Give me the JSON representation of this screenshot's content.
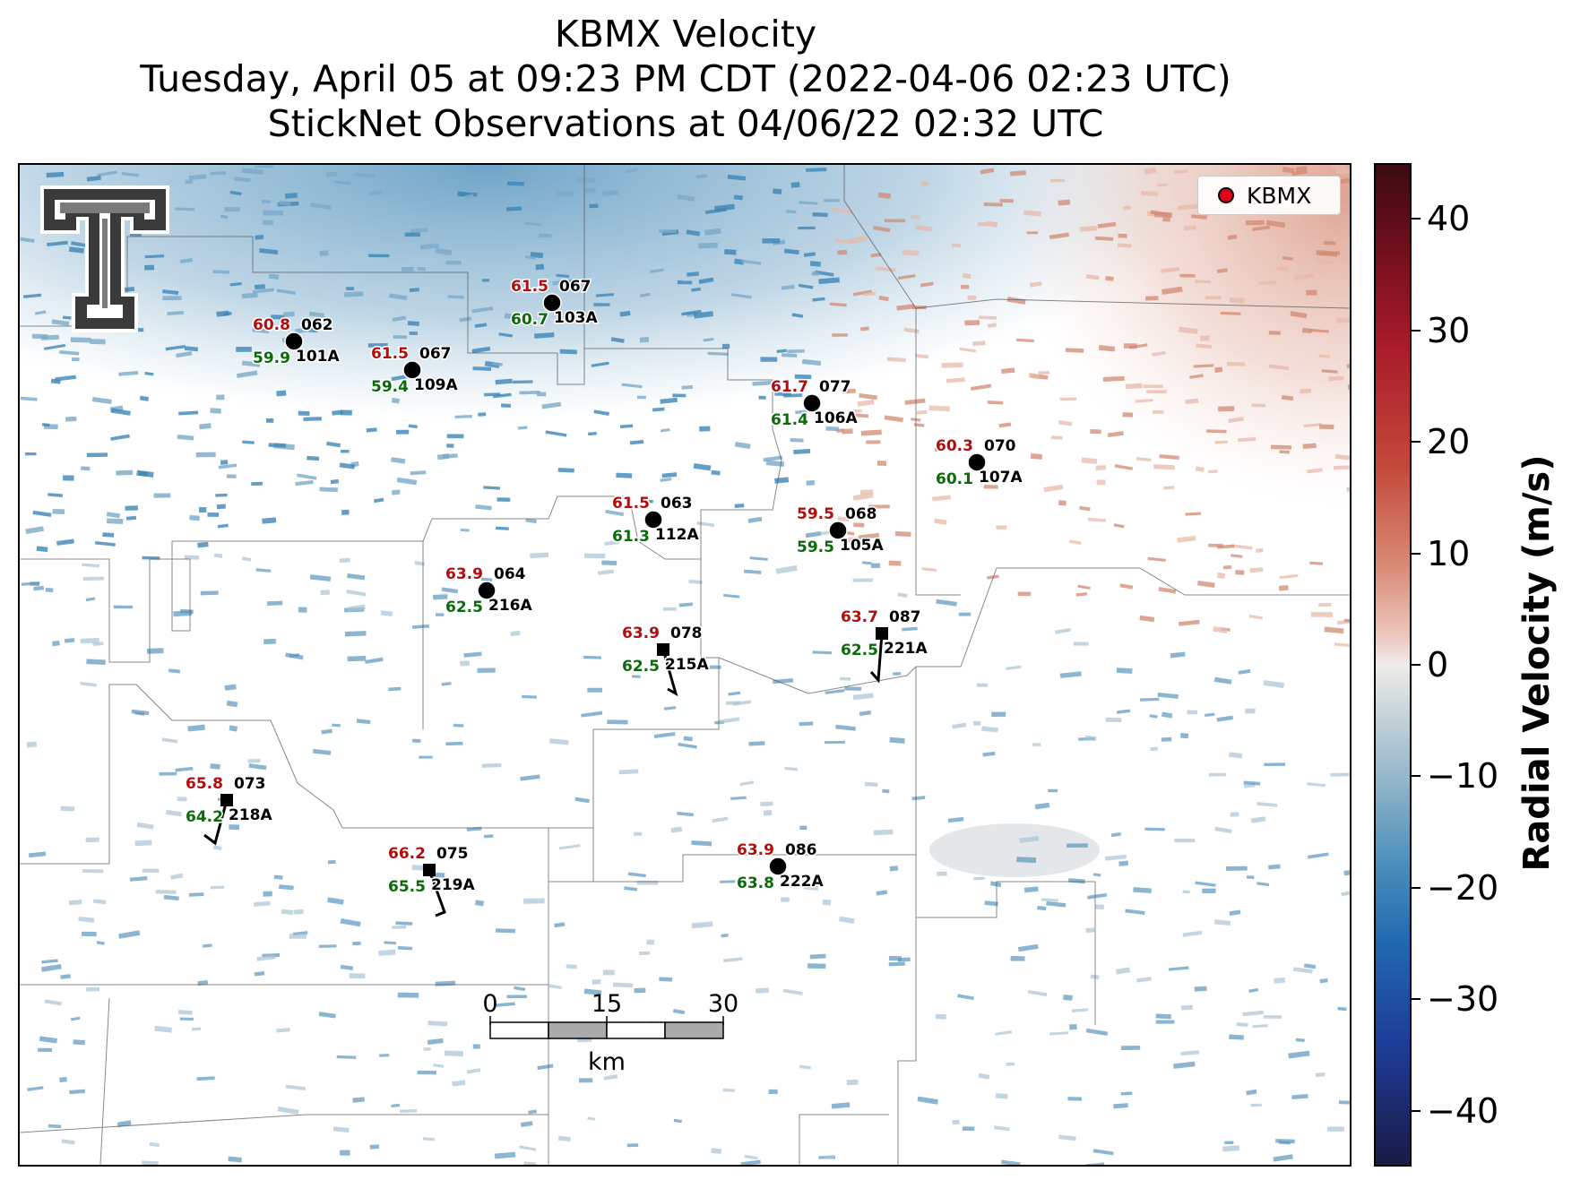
{
  "title": {
    "line1": "KBMX Velocity",
    "line2": "Tuesday, April 05 at 09:23 PM CDT (2022-04-06 02:23 UTC)",
    "line3": "StickNet Observations at 04/06/22 02:32 UTC"
  },
  "legend": {
    "label": "KBMX",
    "marker_color": "#e0001b"
  },
  "logo": {
    "name": "texas-tech-double-t-logo"
  },
  "colorbar": {
    "label": "Radial Velocity (m/s)",
    "range": [
      -45,
      45
    ],
    "ticks": [
      "40",
      "30",
      "20",
      "10",
      "0",
      "−10",
      "−20",
      "−30",
      "−40"
    ],
    "colors": {
      "max": "#3b0a12",
      "zero": "#f0ecea",
      "min": "#1a1a45"
    }
  },
  "scale_bar": {
    "ticks": [
      "0",
      "15",
      "30"
    ],
    "unit": "km"
  },
  "stations": [
    {
      "id": "101A",
      "red": "60.8",
      "green": "59.9",
      "dir": "062",
      "marker": "circle"
    },
    {
      "id": "109A",
      "red": "61.5",
      "green": "59.4",
      "dir": "067",
      "marker": "circle"
    },
    {
      "id": "103A",
      "red": "61.5",
      "green": "60.7",
      "dir": "067",
      "marker": "circle"
    },
    {
      "id": "106A",
      "red": "61.7",
      "green": "61.4",
      "dir": "077",
      "marker": "circle"
    },
    {
      "id": "107A",
      "red": "60.3",
      "green": "60.1",
      "dir": "070",
      "marker": "circle"
    },
    {
      "id": "112A",
      "red": "61.5",
      "green": "61.3",
      "dir": "063",
      "marker": "circle"
    },
    {
      "id": "105A",
      "red": "59.5",
      "green": "59.5",
      "dir": "068",
      "marker": "circle"
    },
    {
      "id": "216A",
      "red": "63.9",
      "green": "62.5",
      "dir": "064",
      "marker": "circle"
    },
    {
      "id": "215A",
      "red": "63.9",
      "green": "62.5",
      "dir": "078",
      "marker": "square"
    },
    {
      "id": "221A",
      "red": "63.7",
      "green": "62.5",
      "dir": "087",
      "marker": "square"
    },
    {
      "id": "218A",
      "red": "65.8",
      "green": "64.2",
      "dir": "073",
      "marker": "square"
    },
    {
      "id": "219A",
      "red": "66.2",
      "green": "65.5",
      "dir": "075",
      "marker": "square"
    },
    {
      "id": "222A",
      "red": "63.9",
      "green": "63.8",
      "dir": "086",
      "marker": "circle"
    }
  ]
}
